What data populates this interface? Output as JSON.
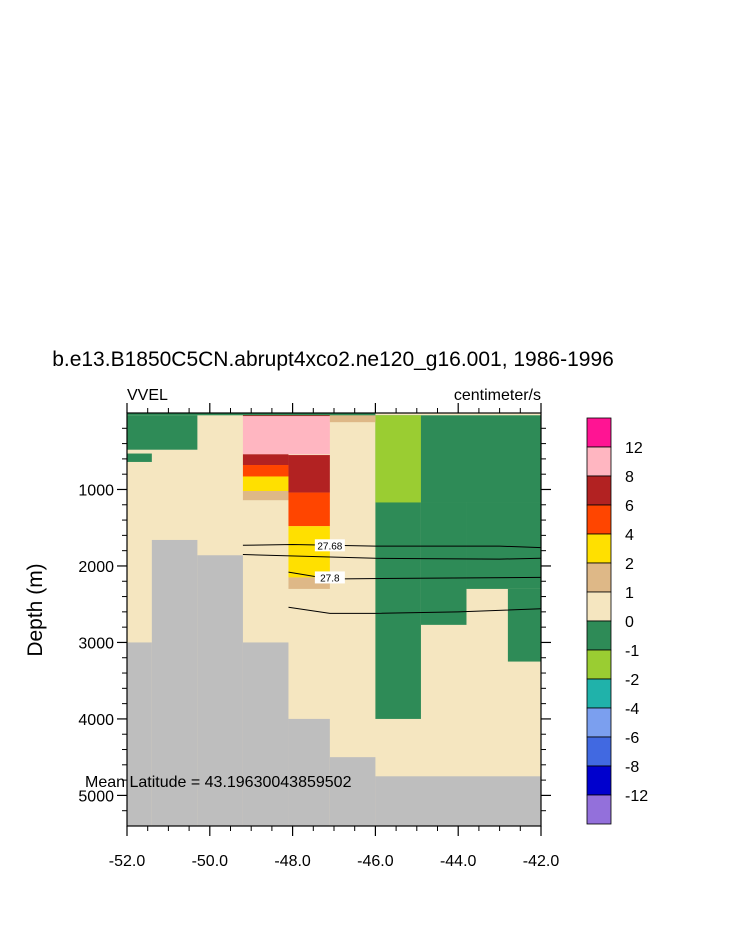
{
  "chart_data": {
    "type": "heatmap",
    "title": "b.e13.B1850C5CN.abrupt4xco2.ne120_g16.001, 1986-1996",
    "left_label": "VVEL",
    "right_label": "centimeter/s",
    "ylabel": "Depth (m)",
    "xlabel": "",
    "xlim": [
      -52.0,
      -42.0
    ],
    "ylim": [
      5400,
      0
    ],
    "y_reversed": true,
    "x_ticks": [
      "-52.0",
      "-50.0",
      "-48.0",
      "-46.0",
      "-44.0",
      "-42.0"
    ],
    "x_tick_values": [
      -52,
      -50,
      -48,
      -46,
      -44,
      -42
    ],
    "y_ticks": [
      "1000",
      "2000",
      "3000",
      "4000",
      "5000"
    ],
    "y_tick_values": [
      1000,
      2000,
      3000,
      4000,
      5000
    ],
    "annotation": "Mean Latitude = 43.19630043859502",
    "colorbar": {
      "labels": [
        "12",
        "8",
        "6",
        "4",
        "2",
        "1",
        "0",
        "-1",
        "-2",
        "-4",
        "-6",
        "-8",
        "-12"
      ],
      "colors": [
        "#FF1493",
        "#FFB6C1",
        "#B22222",
        "#FF4500",
        "#FFE000",
        "#DEB887",
        "#F5E6C0",
        "#2E8B57",
        "#9ACD32",
        "#20B2AA",
        "#7B9FEF",
        "#4169E1",
        "#0000CD",
        "#9370DB"
      ]
    },
    "land_color": "#BEBEBE",
    "fill_cells": [
      {
        "x": [
          -52.0,
          -42.0
        ],
        "depth": [
          0,
          5400
        ],
        "value": "0..1"
      },
      {
        "x": [
          -52.0,
          -50.3
        ],
        "depth": [
          30,
          480
        ],
        "value": "-1..0"
      },
      {
        "x": [
          -52.0,
          -51.4
        ],
        "depth": [
          530,
          640
        ],
        "value": "-1..0"
      },
      {
        "x": [
          -46.0,
          -42.0
        ],
        "depth": [
          30,
          1170
        ],
        "value": "-1..0"
      },
      {
        "x": [
          -46.0,
          -44.9
        ],
        "depth": [
          30,
          1170
        ],
        "value": "-2..-1"
      },
      {
        "x": [
          -46.0,
          -44.9
        ],
        "depth": [
          1170,
          4000
        ],
        "value": "-1..0"
      },
      {
        "x": [
          -44.9,
          -43.8
        ],
        "depth": [
          1170,
          2770
        ],
        "value": "-1..0"
      },
      {
        "x": [
          -43.8,
          -42.0
        ],
        "depth": [
          1170,
          2300
        ],
        "value": "-1..0"
      },
      {
        "x": [
          -42.8,
          -42.0
        ],
        "depth": [
          2300,
          3250
        ],
        "value": "-1..0"
      },
      {
        "x": [
          -49.2,
          -47.1
        ],
        "depth": [
          30,
          540
        ],
        "value": "8..12"
      },
      {
        "x": [
          -49.2,
          -48.1
        ],
        "depth": [
          540,
          680
        ],
        "value": "6..8"
      },
      {
        "x": [
          -49.2,
          -48.1
        ],
        "depth": [
          680,
          830
        ],
        "value": "4..6"
      },
      {
        "x": [
          -49.2,
          -48.1
        ],
        "depth": [
          830,
          1020
        ],
        "value": "2..4"
      },
      {
        "x": [
          -49.2,
          -48.1
        ],
        "depth": [
          1020,
          1140
        ],
        "value": "1..2"
      },
      {
        "x": [
          -48.1,
          -47.1
        ],
        "depth": [
          550,
          1040
        ],
        "value": "6..8"
      },
      {
        "x": [
          -48.1,
          -47.1
        ],
        "depth": [
          1040,
          1480
        ],
        "value": "4..6"
      },
      {
        "x": [
          -48.1,
          -47.1
        ],
        "depth": [
          1480,
          2150
        ],
        "value": "2..4"
      },
      {
        "x": [
          -48.1,
          -47.1
        ],
        "depth": [
          2150,
          2300
        ],
        "value": "1..2"
      },
      {
        "x": [
          -49.2,
          -47.1
        ],
        "depth": [
          0,
          40
        ],
        "value": "6..8"
      },
      {
        "x": [
          -47.1,
          -46.0
        ],
        "depth": [
          0,
          120
        ],
        "value": "1..2"
      },
      {
        "x": [
          -52.0,
          -46.0
        ],
        "depth": [
          0,
          30
        ],
        "value": "-1..0"
      }
    ],
    "land_cells": [
      {
        "x": [
          -52.0,
          -51.4
        ],
        "depth": [
          3000,
          5400
        ]
      },
      {
        "x": [
          -51.4,
          -50.3
        ],
        "depth": [
          1660,
          5400
        ]
      },
      {
        "x": [
          -50.3,
          -49.2
        ],
        "depth": [
          1860,
          5400
        ]
      },
      {
        "x": [
          -49.2,
          -48.1
        ],
        "depth": [
          3000,
          5400
        ]
      },
      {
        "x": [
          -48.1,
          -47.1
        ],
        "depth": [
          4000,
          5400
        ]
      },
      {
        "x": [
          -47.1,
          -46.0
        ],
        "depth": [
          4500,
          5400
        ]
      },
      {
        "x": [
          -46.0,
          -42.0
        ],
        "depth": [
          4750,
          5400
        ]
      }
    ],
    "contour_lines": [
      {
        "label": "27.68",
        "label_at": [
          -47.1,
          1730
        ],
        "points": [
          [
            -49.2,
            1730
          ],
          [
            -48.0,
            1720
          ],
          [
            -46.0,
            1740
          ],
          [
            -43.0,
            1740
          ],
          [
            -42.0,
            1760
          ]
        ]
      },
      {
        "label": "27.8",
        "label_at": [
          -47.1,
          2150
        ],
        "points": [
          [
            -48.1,
            2080
          ],
          [
            -47.1,
            2170
          ],
          [
            -45.0,
            2160
          ],
          [
            -42.0,
            2150
          ]
        ]
      },
      {
        "label": "",
        "points": [
          [
            -49.2,
            1850
          ],
          [
            -46.0,
            1900
          ],
          [
            -43.0,
            1910
          ],
          [
            -42.0,
            1900
          ]
        ]
      },
      {
        "label": "",
        "points": [
          [
            -48.1,
            2540
          ],
          [
            -47.1,
            2620
          ],
          [
            -46.0,
            2620
          ],
          [
            -44.0,
            2600
          ],
          [
            -42.0,
            2560
          ]
        ]
      }
    ]
  }
}
